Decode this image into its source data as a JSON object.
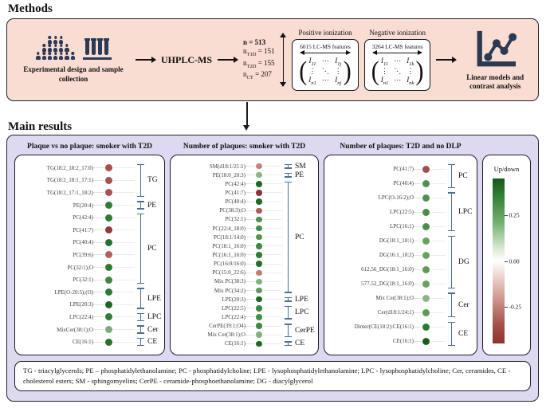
{
  "colors": {
    "methods_bg": "#f9dcd2",
    "results_bg": "#ded9f0",
    "icon_navy": "#2b3a55",
    "bracket_blue": "#4b6e95",
    "legend_top": "#14591b",
    "legend_mid": "#ffffff",
    "legend_bottom": "#8e332d"
  },
  "methods": {
    "title": "Methods",
    "cohort_caption": "Experimental design and sample collection",
    "people_rows": [
      3,
      5,
      7
    ],
    "tube_count": 4,
    "uhplc_label": "UHPLC-MS",
    "sample_sizes": [
      {
        "base": "n",
        "sub": "",
        "value": "= 513",
        "bold": true
      },
      {
        "base": "n",
        "sub": "T1D",
        "value": "= 151",
        "bold": false
      },
      {
        "base": "n",
        "sub": "T2D",
        "value": "= 155",
        "bold": false
      },
      {
        "base": "n",
        "sub": "CT",
        "value": "= 207",
        "bold": false
      }
    ],
    "ionization": [
      {
        "label": "Positive ionization",
        "features": "6015 LC-MS features",
        "matrix": [
          [
            "I11",
            "⋯",
            "I1j"
          ],
          [
            "⋮",
            "⋱",
            "⋮"
          ],
          [
            "In1",
            "⋯",
            "Inj"
          ]
        ]
      },
      {
        "label": "Negative ionization",
        "features": "3264 LC-MS features",
        "matrix": [
          [
            "I11",
            "⋯",
            "I1k"
          ],
          [
            "⋮",
            "⋱",
            "⋮"
          ],
          [
            "In1",
            "⋯",
            "Ink"
          ]
        ]
      }
    ],
    "linear_caption": "Linear models and contrast analysis"
  },
  "results": {
    "title": "Main results",
    "panels": [
      {
        "header": "Plaque vs no plaque: smoker with T2D",
        "rows": [
          {
            "label": "TG(18:2_18:2_17:0)",
            "color": "#a85050"
          },
          {
            "label": "TG(18:2_18:1_17:1)",
            "color": "#a85050"
          },
          {
            "label": "TG(18:2_17:1_18:2)",
            "color": "#aa5252"
          },
          {
            "label": "PE(20:4)",
            "color": "#2e7c33"
          },
          {
            "label": "PC(42:4)",
            "color": "#2e7c33"
          },
          {
            "label": "PC(41:7)",
            "color": "#8e3a3a"
          },
          {
            "label": "PC(40:4)",
            "color": "#28702d"
          },
          {
            "label": "PC(39:6)",
            "color": "#b06058"
          },
          {
            "label": "PC(32:1);O",
            "color": "#2e7c33"
          },
          {
            "label": "PC(32:1)",
            "color": "#3e8743"
          },
          {
            "label": "LPE(O-20:5);(O)",
            "color": "#2e7c33"
          },
          {
            "label": "LPE(20:3)",
            "color": "#1e6523"
          },
          {
            "label": "LPC(22:4)",
            "color": "#2e7c33"
          },
          {
            "label": "MixCer(38:1);O",
            "color": "#7dac7a"
          },
          {
            "label": "CE(16:1)",
            "color": "#28702d"
          }
        ],
        "groups": [
          {
            "label": "TG",
            "from": 0,
            "to": 2
          },
          {
            "label": "PE",
            "from": 3,
            "to": 3
          },
          {
            "label": "PC",
            "from": 4,
            "to": 9
          },
          {
            "label": "LPE",
            "from": 10,
            "to": 11
          },
          {
            "label": "LPC",
            "from": 12,
            "to": 12
          },
          {
            "label": "Cer",
            "from": 13,
            "to": 13
          },
          {
            "label": "CE",
            "from": 14,
            "to": 14
          }
        ]
      },
      {
        "header": "Number of plaques: smoker with T2D",
        "rows": [
          {
            "label": "SM(d18:1/21:1)",
            "color": "#c8837b"
          },
          {
            "label": "PE(18:0_20:3)",
            "color": "#8ab585"
          },
          {
            "label": "PC(42:4)",
            "color": "#1d6a23"
          },
          {
            "label": "PC(41:7)",
            "color": "#8c3434"
          },
          {
            "label": "PC(40:4)",
            "color": "#1d6a23"
          },
          {
            "label": "PC(38:3);O",
            "color": "#b05b52"
          },
          {
            "label": "PC(32:1)",
            "color": "#4c9150"
          },
          {
            "label": "PC(22:4_18:0)",
            "color": "#458f48"
          },
          {
            "label": "PC(18:1/14:0)",
            "color": "#549650"
          },
          {
            "label": "PC(18:1_16:0)",
            "color": "#3c8941"
          },
          {
            "label": "PC(16:1_16:0)",
            "color": "#2f7c33"
          },
          {
            "label": "PC(16:0/16:0)",
            "color": "#256f29"
          },
          {
            "label": "PC(15:0_22:6)",
            "color": "#bf7e74"
          },
          {
            "label": "Mix PC(38:3)",
            "color": "#84b27f"
          },
          {
            "label": "Mix PC(34:2)",
            "color": "#5d9b58"
          },
          {
            "label": "LPE(20:3)",
            "color": "#1d6a23"
          },
          {
            "label": "LPC(22:5)",
            "color": "#3c8941"
          },
          {
            "label": "LPC(22:4)",
            "color": "#458f48"
          },
          {
            "label": "CerPE(39:1;O4)",
            "color": "#3c8941"
          },
          {
            "label": "Mix Cer(38:1);O",
            "color": "#84b27f"
          },
          {
            "label": "CE(16:1)",
            "color": "#1d6a23"
          }
        ],
        "groups": [
          {
            "label": "SM",
            "from": 0,
            "to": 0
          },
          {
            "label": "PE",
            "from": 1,
            "to": 1
          },
          {
            "label": "PC",
            "from": 2,
            "to": 14
          },
          {
            "label": "LPE",
            "from": 15,
            "to": 15
          },
          {
            "label": "LPC",
            "from": 16,
            "to": 17
          },
          {
            "label": "CerPE",
            "from": 18,
            "to": 19
          },
          {
            "label": "CE",
            "from": 20,
            "to": 20
          }
        ]
      },
      {
        "header": "Number of plaques: T2D and no DLP",
        "rows": [
          {
            "label": "PC(41:7)",
            "color": "#a34c48"
          },
          {
            "label": "PC(40:4)",
            "color": "#4c9150"
          },
          {
            "label": "LPC(O-16:2);O",
            "color": "#4c9150"
          },
          {
            "label": "LPC(22:5)",
            "color": "#458f48"
          },
          {
            "label": "LPC(16:1)",
            "color": "#458f48"
          },
          {
            "label": "DG(18:1_18:1)",
            "color": "#68a35e"
          },
          {
            "label": "DG(16:1_18:2)",
            "color": "#68a35e"
          },
          {
            "label": "612.56_DG(18:1_16:0)",
            "color": "#5d9b54"
          },
          {
            "label": "577.52_DG(18:1_16:0)",
            "color": "#68a35e"
          },
          {
            "label": "Mix Cer(38:1);O",
            "color": "#8ab585"
          },
          {
            "label": "Cer(d18:1/24:1)",
            "color": "#5d9b54"
          },
          {
            "label": "Dimer(CE(18:2):CE(16:1)",
            "color": "#2a7a2e"
          },
          {
            "label": "CE(16:1)",
            "color": "#175e1d"
          }
        ],
        "groups": [
          {
            "label": "PC",
            "from": 0,
            "to": 1
          },
          {
            "label": "LPC",
            "from": 2,
            "to": 4
          },
          {
            "label": "DG",
            "from": 5,
            "to": 8
          },
          {
            "label": "Cer",
            "from": 9,
            "to": 10
          },
          {
            "label": "CE",
            "from": 11,
            "to": 12
          }
        ]
      }
    ],
    "legend": {
      "title": "Up/down",
      "ticks": [
        {
          "label": "0.25",
          "offset_pct": 22
        },
        {
          "label": "0.00",
          "offset_pct": 50
        },
        {
          "label": "-0.25",
          "offset_pct": 78
        }
      ]
    },
    "footnote": "TG - triacylglycerols; PE – phosphatidylethanolamine; PC - phosphatidylcholine; LPE - lysophosphatidylethanolamine; LPC - lysophosphatidylcholine; Cer, ceramides, CE - cholesterol esters; SM - sphingomyelins; CerPE - ceramide-phosphoethanolamine; DG - diacylglycerol"
  }
}
